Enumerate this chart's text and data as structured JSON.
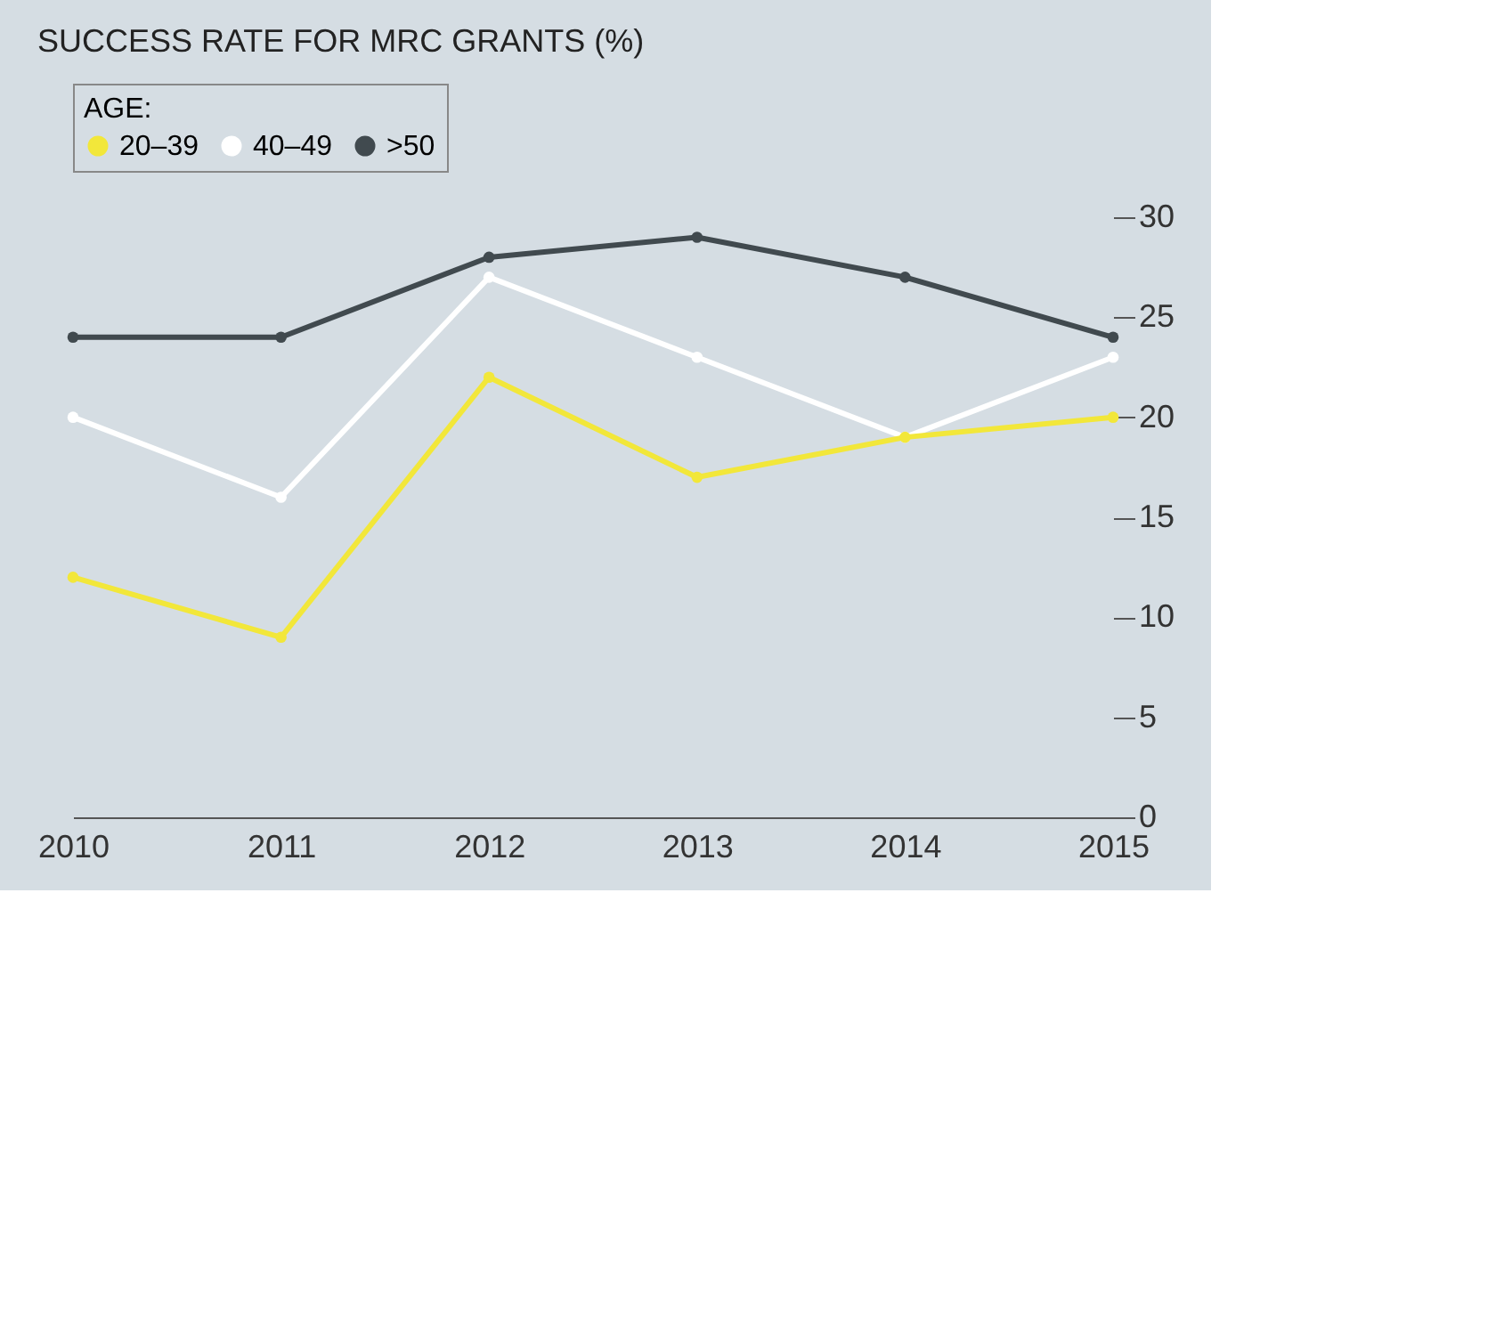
{
  "chart_data": {
    "type": "line",
    "title": "SUCCESS RATE FOR MRC GRANTS (%)",
    "legend_title": "AGE:",
    "x": [
      2010,
      2011,
      2012,
      2013,
      2014,
      2015
    ],
    "series": [
      {
        "name": "20–39",
        "color": "#f2e73a",
        "values": [
          12,
          9,
          22,
          17,
          19,
          20
        ]
      },
      {
        "name": "40–49",
        "color": "#ffffff",
        "values": [
          20,
          16,
          27,
          23,
          19,
          23
        ]
      },
      {
        "name": ">50",
        "color": "#414a4f",
        "values": [
          24,
          24,
          28,
          29,
          27,
          24
        ]
      }
    ],
    "xlim": [
      2010,
      2015
    ],
    "xticks": [
      2010,
      2011,
      2012,
      2013,
      2014,
      2015
    ],
    "ylim": [
      0,
      30
    ],
    "yticks": [
      0,
      5,
      10,
      15,
      20,
      25,
      30
    ],
    "grid": false,
    "legend": "top left",
    "marker": "circle",
    "line_style": "solid"
  }
}
